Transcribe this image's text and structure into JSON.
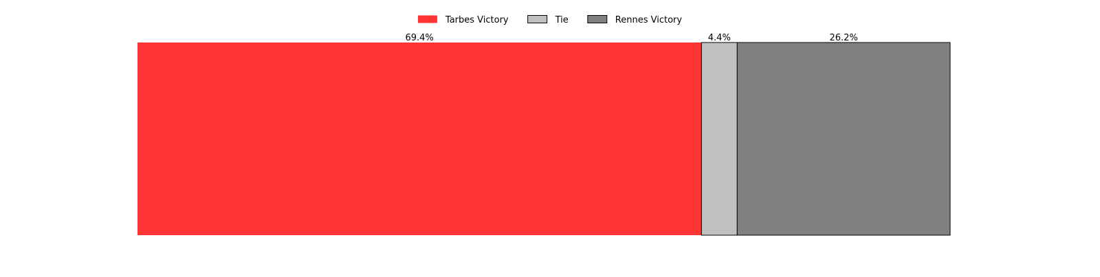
{
  "chart_data": {
    "type": "bar",
    "orientation": "horizontal-stacked",
    "title": "",
    "xlabel": "",
    "ylabel": "",
    "grid": false,
    "legend_position": "top-center",
    "unit": "%",
    "series": [
      {
        "name": "Tarbes Victory",
        "value": 69.4,
        "label": "69.4%",
        "color": "#ff3333",
        "outlined": false
      },
      {
        "name": "Tie",
        "value": 4.4,
        "label": "4.4%",
        "color": "#c0c0c0",
        "outlined": true
      },
      {
        "name": "Rennes Victory",
        "value": 26.2,
        "label": "26.2%",
        "color": "#808080",
        "outlined": true
      }
    ]
  }
}
